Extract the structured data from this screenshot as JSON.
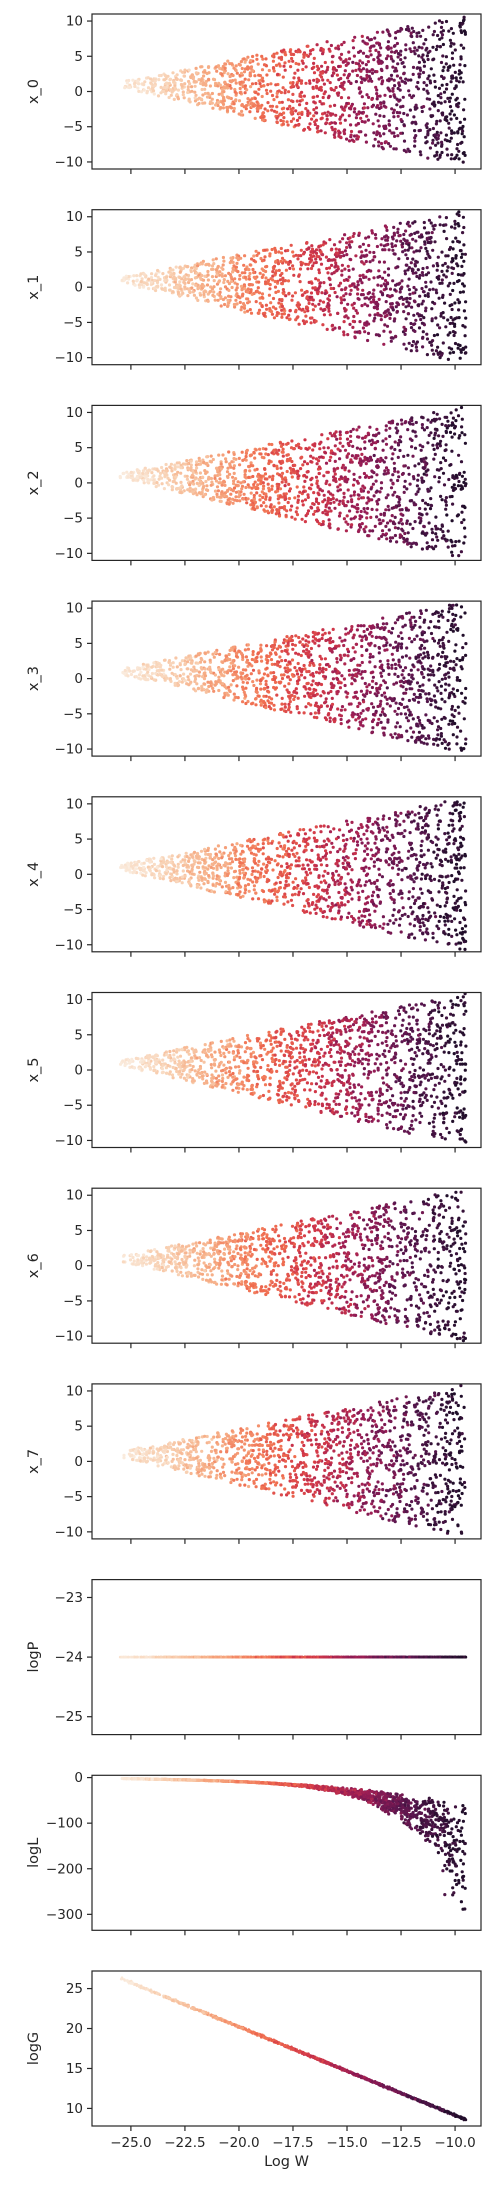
{
  "colors": {
    "palette": "rocket",
    "background": "#ffffff",
    "axes": "#262626"
  },
  "chart_data": [
    {
      "type": "scatter",
      "ylabel": "x_0",
      "xlabel": "",
      "xlim": [
        -26.8,
        -8.8
      ],
      "ylim": [
        -11,
        11
      ],
      "yticks": [
        -10,
        -5,
        0,
        5,
        10
      ],
      "xticks": [
        -25.0,
        -22.5,
        -20.0,
        -17.5,
        -15.0,
        -12.5,
        -10.0
      ],
      "show_xtick_labels": false,
      "x_range": [
        -25.5,
        -9.5
      ],
      "shape": "wedge",
      "y_start": 1.0,
      "y_end_half_width": 10.5,
      "color_by": "Log W"
    },
    {
      "type": "scatter",
      "ylabel": "x_1",
      "xlabel": "",
      "xlim": [
        -26.8,
        -8.8
      ],
      "ylim": [
        -11,
        11
      ],
      "yticks": [
        -10,
        -5,
        0,
        5,
        10
      ],
      "xticks": [
        -25.0,
        -22.5,
        -20.0,
        -17.5,
        -15.0,
        -12.5,
        -10.0
      ],
      "show_xtick_labels": false,
      "x_range": [
        -25.5,
        -9.5
      ],
      "shape": "wedge",
      "y_start": 1.0,
      "y_end_half_width": 10.5,
      "color_by": "Log W"
    },
    {
      "type": "scatter",
      "ylabel": "x_2",
      "xlabel": "",
      "xlim": [
        -26.8,
        -8.8
      ],
      "ylim": [
        -11,
        11
      ],
      "yticks": [
        -10,
        -5,
        0,
        5,
        10
      ],
      "xticks": [
        -25.0,
        -22.5,
        -20.0,
        -17.5,
        -15.0,
        -12.5,
        -10.0
      ],
      "show_xtick_labels": false,
      "x_range": [
        -25.5,
        -9.5
      ],
      "shape": "wedge",
      "y_start": 1.0,
      "y_end_half_width": 10.5,
      "color_by": "Log W"
    },
    {
      "type": "scatter",
      "ylabel": "x_3",
      "xlabel": "",
      "xlim": [
        -26.8,
        -8.8
      ],
      "ylim": [
        -11,
        11
      ],
      "yticks": [
        -10,
        -5,
        0,
        5,
        10
      ],
      "xticks": [
        -25.0,
        -22.5,
        -20.0,
        -17.5,
        -15.0,
        -12.5,
        -10.0
      ],
      "show_xtick_labels": false,
      "x_range": [
        -25.5,
        -9.5
      ],
      "shape": "wedge",
      "y_start": 1.0,
      "y_end_half_width": 10.5,
      "color_by": "Log W"
    },
    {
      "type": "scatter",
      "ylabel": "x_4",
      "xlabel": "",
      "xlim": [
        -26.8,
        -8.8
      ],
      "ylim": [
        -11,
        11
      ],
      "yticks": [
        -10,
        -5,
        0,
        5,
        10
      ],
      "xticks": [
        -25.0,
        -22.5,
        -20.0,
        -17.5,
        -15.0,
        -12.5,
        -10.0
      ],
      "show_xtick_labels": false,
      "x_range": [
        -25.5,
        -9.5
      ],
      "shape": "wedge",
      "y_start": 1.0,
      "y_end_half_width": 10.5,
      "color_by": "Log W"
    },
    {
      "type": "scatter",
      "ylabel": "x_5",
      "xlabel": "",
      "xlim": [
        -26.8,
        -8.8
      ],
      "ylim": [
        -11,
        11
      ],
      "yticks": [
        -10,
        -5,
        0,
        5,
        10
      ],
      "xticks": [
        -25.0,
        -22.5,
        -20.0,
        -17.5,
        -15.0,
        -12.5,
        -10.0
      ],
      "show_xtick_labels": false,
      "x_range": [
        -25.5,
        -9.5
      ],
      "shape": "wedge",
      "y_start": 1.0,
      "y_end_half_width": 10.5,
      "color_by": "Log W"
    },
    {
      "type": "scatter",
      "ylabel": "x_6",
      "xlabel": "",
      "xlim": [
        -26.8,
        -8.8
      ],
      "ylim": [
        -11,
        11
      ],
      "yticks": [
        -10,
        -5,
        0,
        5,
        10
      ],
      "xticks": [
        -25.0,
        -22.5,
        -20.0,
        -17.5,
        -15.0,
        -12.5,
        -10.0
      ],
      "show_xtick_labels": false,
      "x_range": [
        -25.5,
        -9.5
      ],
      "shape": "wedge",
      "y_start": 1.0,
      "y_end_half_width": 10.5,
      "color_by": "Log W"
    },
    {
      "type": "scatter",
      "ylabel": "x_7",
      "xlabel": "",
      "xlim": [
        -26.8,
        -8.8
      ],
      "ylim": [
        -11,
        11
      ],
      "yticks": [
        -10,
        -5,
        0,
        5,
        10
      ],
      "xticks": [
        -25.0,
        -22.5,
        -20.0,
        -17.5,
        -15.0,
        -12.5,
        -10.0
      ],
      "show_xtick_labels": false,
      "x_range": [
        -25.5,
        -9.5
      ],
      "shape": "wedge",
      "y_start": 1.0,
      "y_end_half_width": 10.5,
      "color_by": "Log W"
    },
    {
      "type": "scatter",
      "ylabel": "logP",
      "xlabel": "",
      "xlim": [
        -26.8,
        -8.8
      ],
      "ylim": [
        -25.3,
        -22.7
      ],
      "yticks": [
        -25,
        -24,
        -23
      ],
      "xticks": [
        -25.0,
        -22.5,
        -20.0,
        -17.5,
        -15.0,
        -12.5,
        -10.0
      ],
      "show_xtick_labels": false,
      "x_range": [
        -25.5,
        -9.5
      ],
      "shape": "constant",
      "y_value": -24,
      "color_by": "Log W"
    },
    {
      "type": "scatter",
      "ylabel": "logL",
      "xlabel": "",
      "xlim": [
        -26.8,
        -8.8
      ],
      "ylim": [
        -335,
        5
      ],
      "yticks": [
        -300,
        -200,
        -100,
        0
      ],
      "xticks": [
        -25.0,
        -22.5,
        -20.0,
        -17.5,
        -15.0,
        -12.5,
        -10.0
      ],
      "show_xtick_labels": false,
      "x_range": [
        -25.5,
        -9.5
      ],
      "shape": "decay",
      "y_start": -2,
      "y_end_min": -320,
      "y_end_band": [
        -200,
        -40
      ],
      "color_by": "Log W"
    },
    {
      "type": "scatter",
      "ylabel": "logG",
      "xlabel": "Log W",
      "xlim": [
        -26.8,
        -8.8
      ],
      "ylim": [
        7.8,
        27.2
      ],
      "yticks": [
        10,
        15,
        20,
        25
      ],
      "xticks": [
        -25.0,
        -22.5,
        -20.0,
        -17.5,
        -15.0,
        -12.5,
        -10.0
      ],
      "xtick_labels": [
        "−25.0",
        "−22.5",
        "−20.0",
        "−17.5",
        "−15.0",
        "−12.5",
        "−10.0"
      ],
      "show_xtick_labels": true,
      "x_range": [
        -25.5,
        -9.5
      ],
      "shape": "linear",
      "line": [
        [
          -25.5,
          26.3
        ],
        [
          -9.5,
          8.6
        ]
      ],
      "color_by": "Log W"
    }
  ]
}
